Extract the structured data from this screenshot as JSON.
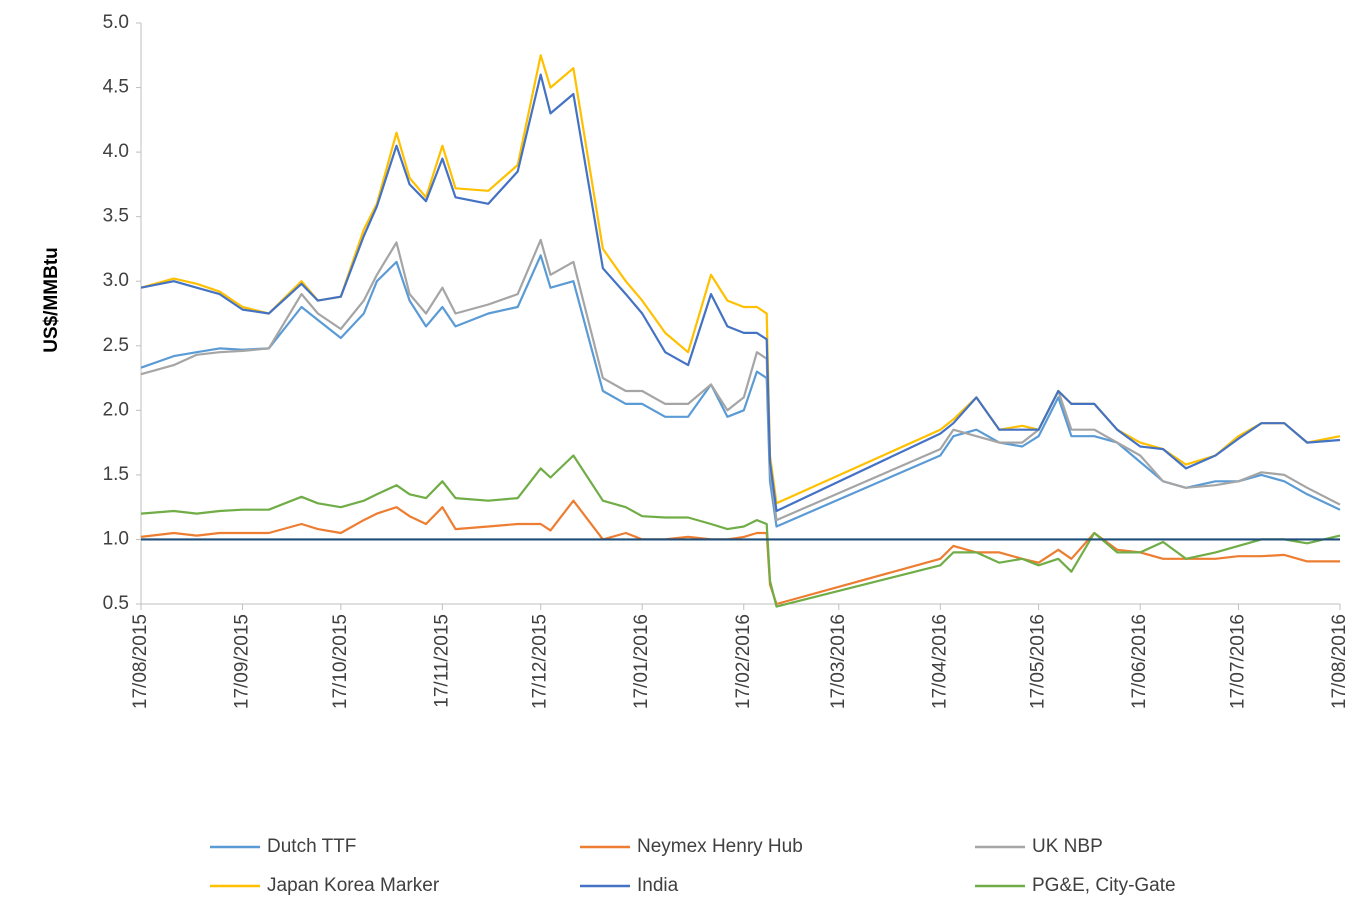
{
  "chart_data": {
    "type": "line",
    "y_label": "US$/MMBtu",
    "x": [
      "17/08/2015",
      "27/08/2015",
      "03/09/2015",
      "10/09/2015",
      "17/09/2015",
      "25/09/2015",
      "05/10/2015",
      "10/10/2015",
      "17/10/2015",
      "24/10/2015",
      "28/10/2015",
      "03/11/2015",
      "07/11/2015",
      "12/11/2015",
      "17/11/2015",
      "21/11/2015",
      "01/12/2015",
      "10/12/2015",
      "17/12/2015",
      "20/12/2015",
      "27/12/2015",
      "05/01/2016",
      "12/01/2016",
      "17/01/2016",
      "24/01/2016",
      "31/01/2016",
      "07/02/2016",
      "12/02/2016",
      "17/02/2016",
      "21/02/2016",
      "24/02/2016",
      "25/02/2016",
      "27/02/2016",
      "17/04/2016",
      "21/04/2016",
      "28/04/2016",
      "05/05/2016",
      "12/05/2016",
      "17/05/2016",
      "23/05/2016",
      "27/05/2016",
      "03/06/2016",
      "10/06/2016",
      "17/06/2016",
      "24/06/2016",
      "01/07/2016",
      "10/07/2016",
      "17/07/2016",
      "24/07/2016",
      "31/07/2016",
      "07/08/2016",
      "17/08/2016"
    ],
    "series": [
      {
        "name": "Dutch TTF",
        "color": "#5b9bd5",
        "values": [
          2.33,
          2.42,
          2.45,
          2.48,
          2.47,
          2.48,
          2.8,
          2.7,
          2.56,
          2.75,
          3.0,
          3.15,
          2.85,
          2.65,
          2.8,
          2.65,
          2.75,
          2.8,
          3.2,
          2.95,
          3.0,
          2.15,
          2.05,
          2.05,
          1.95,
          1.95,
          2.2,
          1.95,
          2.0,
          2.3,
          2.25,
          1.45,
          1.1,
          1.65,
          1.8,
          1.85,
          1.75,
          1.72,
          1.8,
          2.1,
          1.8,
          1.8,
          1.75,
          1.6,
          1.45,
          1.4,
          1.45,
          1.45,
          1.5,
          1.45,
          1.35,
          1.23
        ]
      },
      {
        "name": "Neymex Henry Hub",
        "color": "#ed7d31",
        "values": [
          1.02,
          1.05,
          1.03,
          1.05,
          1.05,
          1.05,
          1.12,
          1.08,
          1.05,
          1.15,
          1.2,
          1.25,
          1.18,
          1.12,
          1.25,
          1.08,
          1.1,
          1.12,
          1.12,
          1.07,
          1.3,
          1.0,
          1.05,
          1.0,
          1.0,
          1.02,
          1.0,
          1.0,
          1.02,
          1.05,
          1.05,
          0.65,
          0.5,
          0.85,
          0.95,
          0.9,
          0.9,
          0.85,
          0.82,
          0.92,
          0.85,
          1.05,
          0.92,
          0.9,
          0.85,
          0.85,
          0.85,
          0.87,
          0.87,
          0.88,
          0.83,
          0.83
        ]
      },
      {
        "name": "UK NBP",
        "color": "#a5a5a5",
        "values": [
          2.28,
          2.35,
          2.43,
          2.45,
          2.46,
          2.48,
          2.9,
          2.75,
          2.63,
          2.85,
          3.05,
          3.3,
          2.9,
          2.75,
          2.95,
          2.75,
          2.82,
          2.9,
          3.32,
          3.05,
          3.15,
          2.25,
          2.15,
          2.15,
          2.05,
          2.05,
          2.2,
          2.0,
          2.1,
          2.45,
          2.4,
          1.55,
          1.15,
          1.7,
          1.85,
          1.8,
          1.75,
          1.75,
          1.85,
          2.15,
          1.85,
          1.85,
          1.75,
          1.65,
          1.45,
          1.4,
          1.42,
          1.45,
          1.52,
          1.5,
          1.4,
          1.27
        ]
      },
      {
        "name": "Japan Korea Marker",
        "color": "#ffc000",
        "values": [
          2.95,
          3.02,
          2.98,
          2.92,
          2.8,
          2.75,
          3.0,
          2.85,
          2.88,
          3.4,
          3.6,
          4.15,
          3.8,
          3.65,
          4.05,
          3.72,
          3.7,
          3.9,
          4.75,
          4.5,
          4.65,
          3.25,
          3.0,
          2.85,
          2.6,
          2.45,
          3.05,
          2.85,
          2.8,
          2.8,
          2.75,
          1.65,
          1.28,
          1.85,
          1.93,
          2.1,
          1.85,
          1.88,
          1.85,
          2.15,
          2.05,
          2.05,
          1.85,
          1.75,
          1.7,
          1.58,
          1.65,
          1.8,
          1.9,
          1.9,
          1.75,
          1.8
        ]
      },
      {
        "name": "India",
        "color": "#4472c4",
        "values": [
          2.95,
          3.0,
          2.95,
          2.9,
          2.78,
          2.75,
          2.98,
          2.85,
          2.88,
          3.35,
          3.58,
          4.05,
          3.75,
          3.62,
          3.95,
          3.65,
          3.6,
          3.85,
          4.6,
          4.3,
          4.45,
          3.1,
          2.9,
          2.75,
          2.45,
          2.35,
          2.9,
          2.65,
          2.6,
          2.6,
          2.55,
          1.6,
          1.22,
          1.82,
          1.9,
          2.1,
          1.85,
          1.85,
          1.85,
          2.15,
          2.05,
          2.05,
          1.85,
          1.72,
          1.7,
          1.55,
          1.65,
          1.78,
          1.9,
          1.9,
          1.75,
          1.77
        ]
      },
      {
        "name": "PG&E, City-Gate",
        "color": "#70ad47",
        "values": [
          1.2,
          1.22,
          1.2,
          1.22,
          1.23,
          1.23,
          1.33,
          1.28,
          1.25,
          1.3,
          1.35,
          1.42,
          1.35,
          1.32,
          1.45,
          1.32,
          1.3,
          1.32,
          1.55,
          1.48,
          1.65,
          1.3,
          1.25,
          1.18,
          1.17,
          1.17,
          1.12,
          1.08,
          1.1,
          1.15,
          1.12,
          0.68,
          0.48,
          0.8,
          0.9,
          0.9,
          0.82,
          0.85,
          0.8,
          0.85,
          0.75,
          1.05,
          0.9,
          0.9,
          0.98,
          0.85,
          0.9,
          0.95,
          1.0,
          1.0,
          0.97,
          1.03
        ]
      }
    ],
    "reference_line": {
      "value": 1,
      "color": "#1f4e79"
    },
    "xlim": [
      "17/08/2015",
      "17/08/2016"
    ],
    "xticks": [
      "17/08/2015",
      "17/09/2015",
      "17/10/2015",
      "17/11/2015",
      "17/12/2015",
      "17/01/2016",
      "17/02/2016",
      "17/03/2016",
      "17/04/2016",
      "17/05/2016",
      "17/06/2016",
      "17/07/2016",
      "17/08/2016"
    ],
    "ylim": [
      0.5,
      5
    ],
    "yticks": [
      0.5,
      {
        "value": 1,
        "label": "1.0"
      },
      1.5,
      {
        "value": 2,
        "label": "2.0"
      },
      2.5,
      {
        "value": 3,
        "label": "3.0"
      },
      3.5,
      {
        "value": 4,
        "label": "4.0"
      },
      4.5,
      {
        "value": 5,
        "label": "5.0"
      }
    ],
    "legend": "bottom"
  }
}
